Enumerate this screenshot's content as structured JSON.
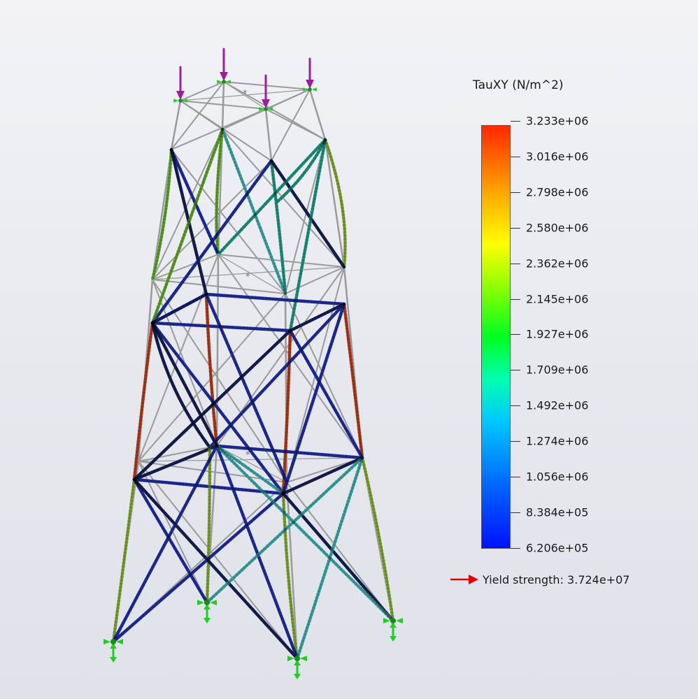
{
  "legend": {
    "title": "TauXY (N/m^2)",
    "ticks": [
      "3.233e+06",
      "3.016e+06",
      "2.798e+06",
      "2.580e+06",
      "2.362e+06",
      "2.145e+06",
      "1.927e+06",
      "1.709e+06",
      "1.492e+06",
      "1.274e+06",
      "1.056e+06",
      "8.384e+05",
      "6.206e+05"
    ],
    "colors": [
      "#ff2800",
      "#ffb000",
      "#ffff00",
      "#90ff00",
      "#00ff20",
      "#00ffb0",
      "#00c8ff",
      "#0066ff",
      "#0012ff"
    ],
    "yield_label": "Yield strength: 3.724e+07"
  },
  "scene": {
    "structure": "lattice tower, three bays, four legs",
    "load_arrow_color": "#9b1f9b",
    "fixture_color": "#22cc22",
    "undeformed_color": "#9a9a9a"
  }
}
